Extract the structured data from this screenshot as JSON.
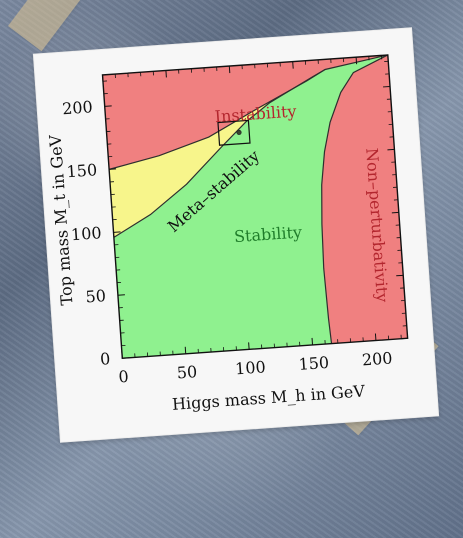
{
  "chart_data": {
    "type": "area",
    "xlabel": "Higgs mass M_h in GeV",
    "ylabel": "Top mass M_t in GeV",
    "xlim": [
      0,
      225
    ],
    "ylim": [
      0,
      225
    ],
    "grid": false,
    "x_ticks": [
      0,
      50,
      100,
      150,
      200
    ],
    "y_ticks": [
      0,
      50,
      100,
      150,
      200
    ],
    "regions": [
      {
        "name": "Instability",
        "color": "#f08080"
      },
      {
        "name": "Meta-stability",
        "color": "#f7f58b"
      },
      {
        "name": "Stability",
        "color": "#8ff18f"
      },
      {
        "name": "Non-perturbativity",
        "color": "#f08080"
      }
    ],
    "boundaries": {
      "instability_upper": [
        {
          "x": 0,
          "y": 150
        },
        {
          "x": 40,
          "y": 158
        },
        {
          "x": 80,
          "y": 170
        },
        {
          "x": 120,
          "y": 190
        },
        {
          "x": 160,
          "y": 209
        },
        {
          "x": 175,
          "y": 217
        },
        {
          "x": 225,
          "y": 225
        }
      ],
      "metastability_lower": [
        {
          "x": 0,
          "y": 96
        },
        {
          "x": 30,
          "y": 112
        },
        {
          "x": 60,
          "y": 134
        },
        {
          "x": 90,
          "y": 162
        },
        {
          "x": 110,
          "y": 180
        },
        {
          "x": 130,
          "y": 194
        },
        {
          "x": 165,
          "y": 212
        },
        {
          "x": 175,
          "y": 217
        }
      ],
      "nonperturbativity_left": [
        {
          "x": 165,
          "y": 0
        },
        {
          "x": 164,
          "y": 20
        },
        {
          "x": 163,
          "y": 60
        },
        {
          "x": 164,
          "y": 95
        },
        {
          "x": 166,
          "y": 126
        },
        {
          "x": 170,
          "y": 152
        },
        {
          "x": 176,
          "y": 175
        },
        {
          "x": 186,
          "y": 198
        },
        {
          "x": 197,
          "y": 213
        },
        {
          "x": 225,
          "y": 225
        }
      ]
    },
    "marker_box": {
      "x_range": [
        88,
        112
      ],
      "y_range": [
        163,
        181
      ]
    },
    "marker_point": {
      "x": 104,
      "y": 172
    },
    "region_labels": {
      "instability": "Instability",
      "metastability": "Meta–stability",
      "stability": "Stability",
      "nonperturbativity": "Non–perturbativity"
    }
  }
}
